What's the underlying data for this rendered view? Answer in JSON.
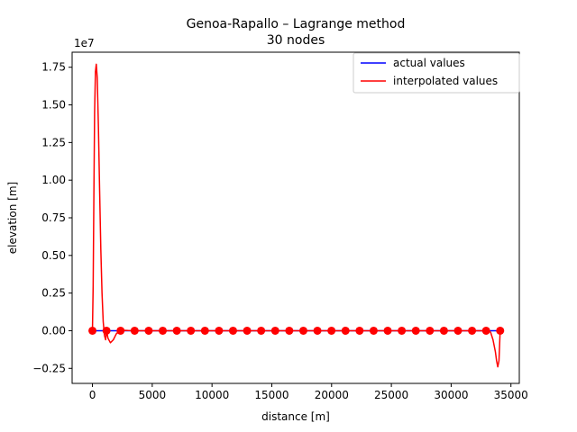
{
  "chart_data": {
    "type": "line",
    "title_line1": "Genoa-Rapallo – Lagrange method",
    "title_line2": "30 nodes",
    "xlabel": "distance [m]",
    "ylabel": "elevation [m]",
    "y_offset_label": "1e7",
    "y_scale": 10000000,
    "xlim": [
      -1700,
      35700
    ],
    "ylim": [
      -3500000,
      18500000
    ],
    "x_ticks": [
      0,
      5000,
      10000,
      15000,
      20000,
      25000,
      30000,
      35000
    ],
    "x_tick_labels": [
      "0",
      "5000",
      "10000",
      "15000",
      "20000",
      "25000",
      "30000",
      "35000"
    ],
    "y_ticks": [
      -2500000,
      0,
      2500000,
      5000000,
      7500000,
      10000000,
      12500000,
      15000000,
      17500000
    ],
    "y_tick_labels": [
      "−0.25",
      "0.00",
      "0.25",
      "0.50",
      "0.75",
      "1.00",
      "1.25",
      "1.50",
      "1.75"
    ],
    "grid": false,
    "legend_position": "top-right",
    "colors": {
      "actual": "#0000ff",
      "interpolated": "#ff0000"
    },
    "series": [
      {
        "name": "actual values",
        "x": [
          0,
          34100
        ],
        "y": [
          0,
          0
        ]
      },
      {
        "name": "interpolated values",
        "x": [
          0,
          60,
          120,
          180,
          250,
          320,
          400,
          500,
          600,
          700,
          800,
          900,
          1000,
          1100,
          1176,
          1300,
          1500,
          1750,
          2000,
          2200,
          2352,
          2600,
          3000,
          4000,
          6000,
          10000,
          15000,
          20000,
          25000,
          28000,
          30000,
          31000,
          32000,
          32500,
          32900,
          33100,
          33300,
          33500,
          33700,
          33800,
          33900,
          34000,
          34100
        ],
        "y": [
          0,
          3000000,
          9000000,
          14500000,
          17200000,
          17700000,
          16800000,
          13500000,
          9300000,
          5400000,
          2500000,
          600000,
          -300000,
          -600000,
          0,
          -500000,
          -800000,
          -600000,
          -200000,
          -50000,
          0,
          30000,
          10000,
          0,
          0,
          0,
          0,
          0,
          0,
          0,
          0,
          0,
          0,
          0,
          0,
          0,
          -100000,
          -600000,
          -1400000,
          -2000000,
          -2400000,
          -2000000,
          0
        ]
      },
      {
        "name": "nodes",
        "x": [
          0,
          1176,
          2352,
          3528,
          4703,
          5879,
          7055,
          8231,
          9407,
          10583,
          11759,
          12934,
          14110,
          15286,
          16462,
          17638,
          18814,
          19990,
          21166,
          22341,
          23517,
          24693,
          25869,
          27045,
          28221,
          29397,
          30572,
          31748,
          32924,
          34100
        ],
        "y": [
          0,
          0,
          0,
          0,
          0,
          0,
          0,
          0,
          0,
          0,
          0,
          0,
          0,
          0,
          0,
          0,
          0,
          0,
          0,
          0,
          0,
          0,
          0,
          0,
          0,
          0,
          0,
          0,
          0,
          0
        ]
      }
    ]
  }
}
